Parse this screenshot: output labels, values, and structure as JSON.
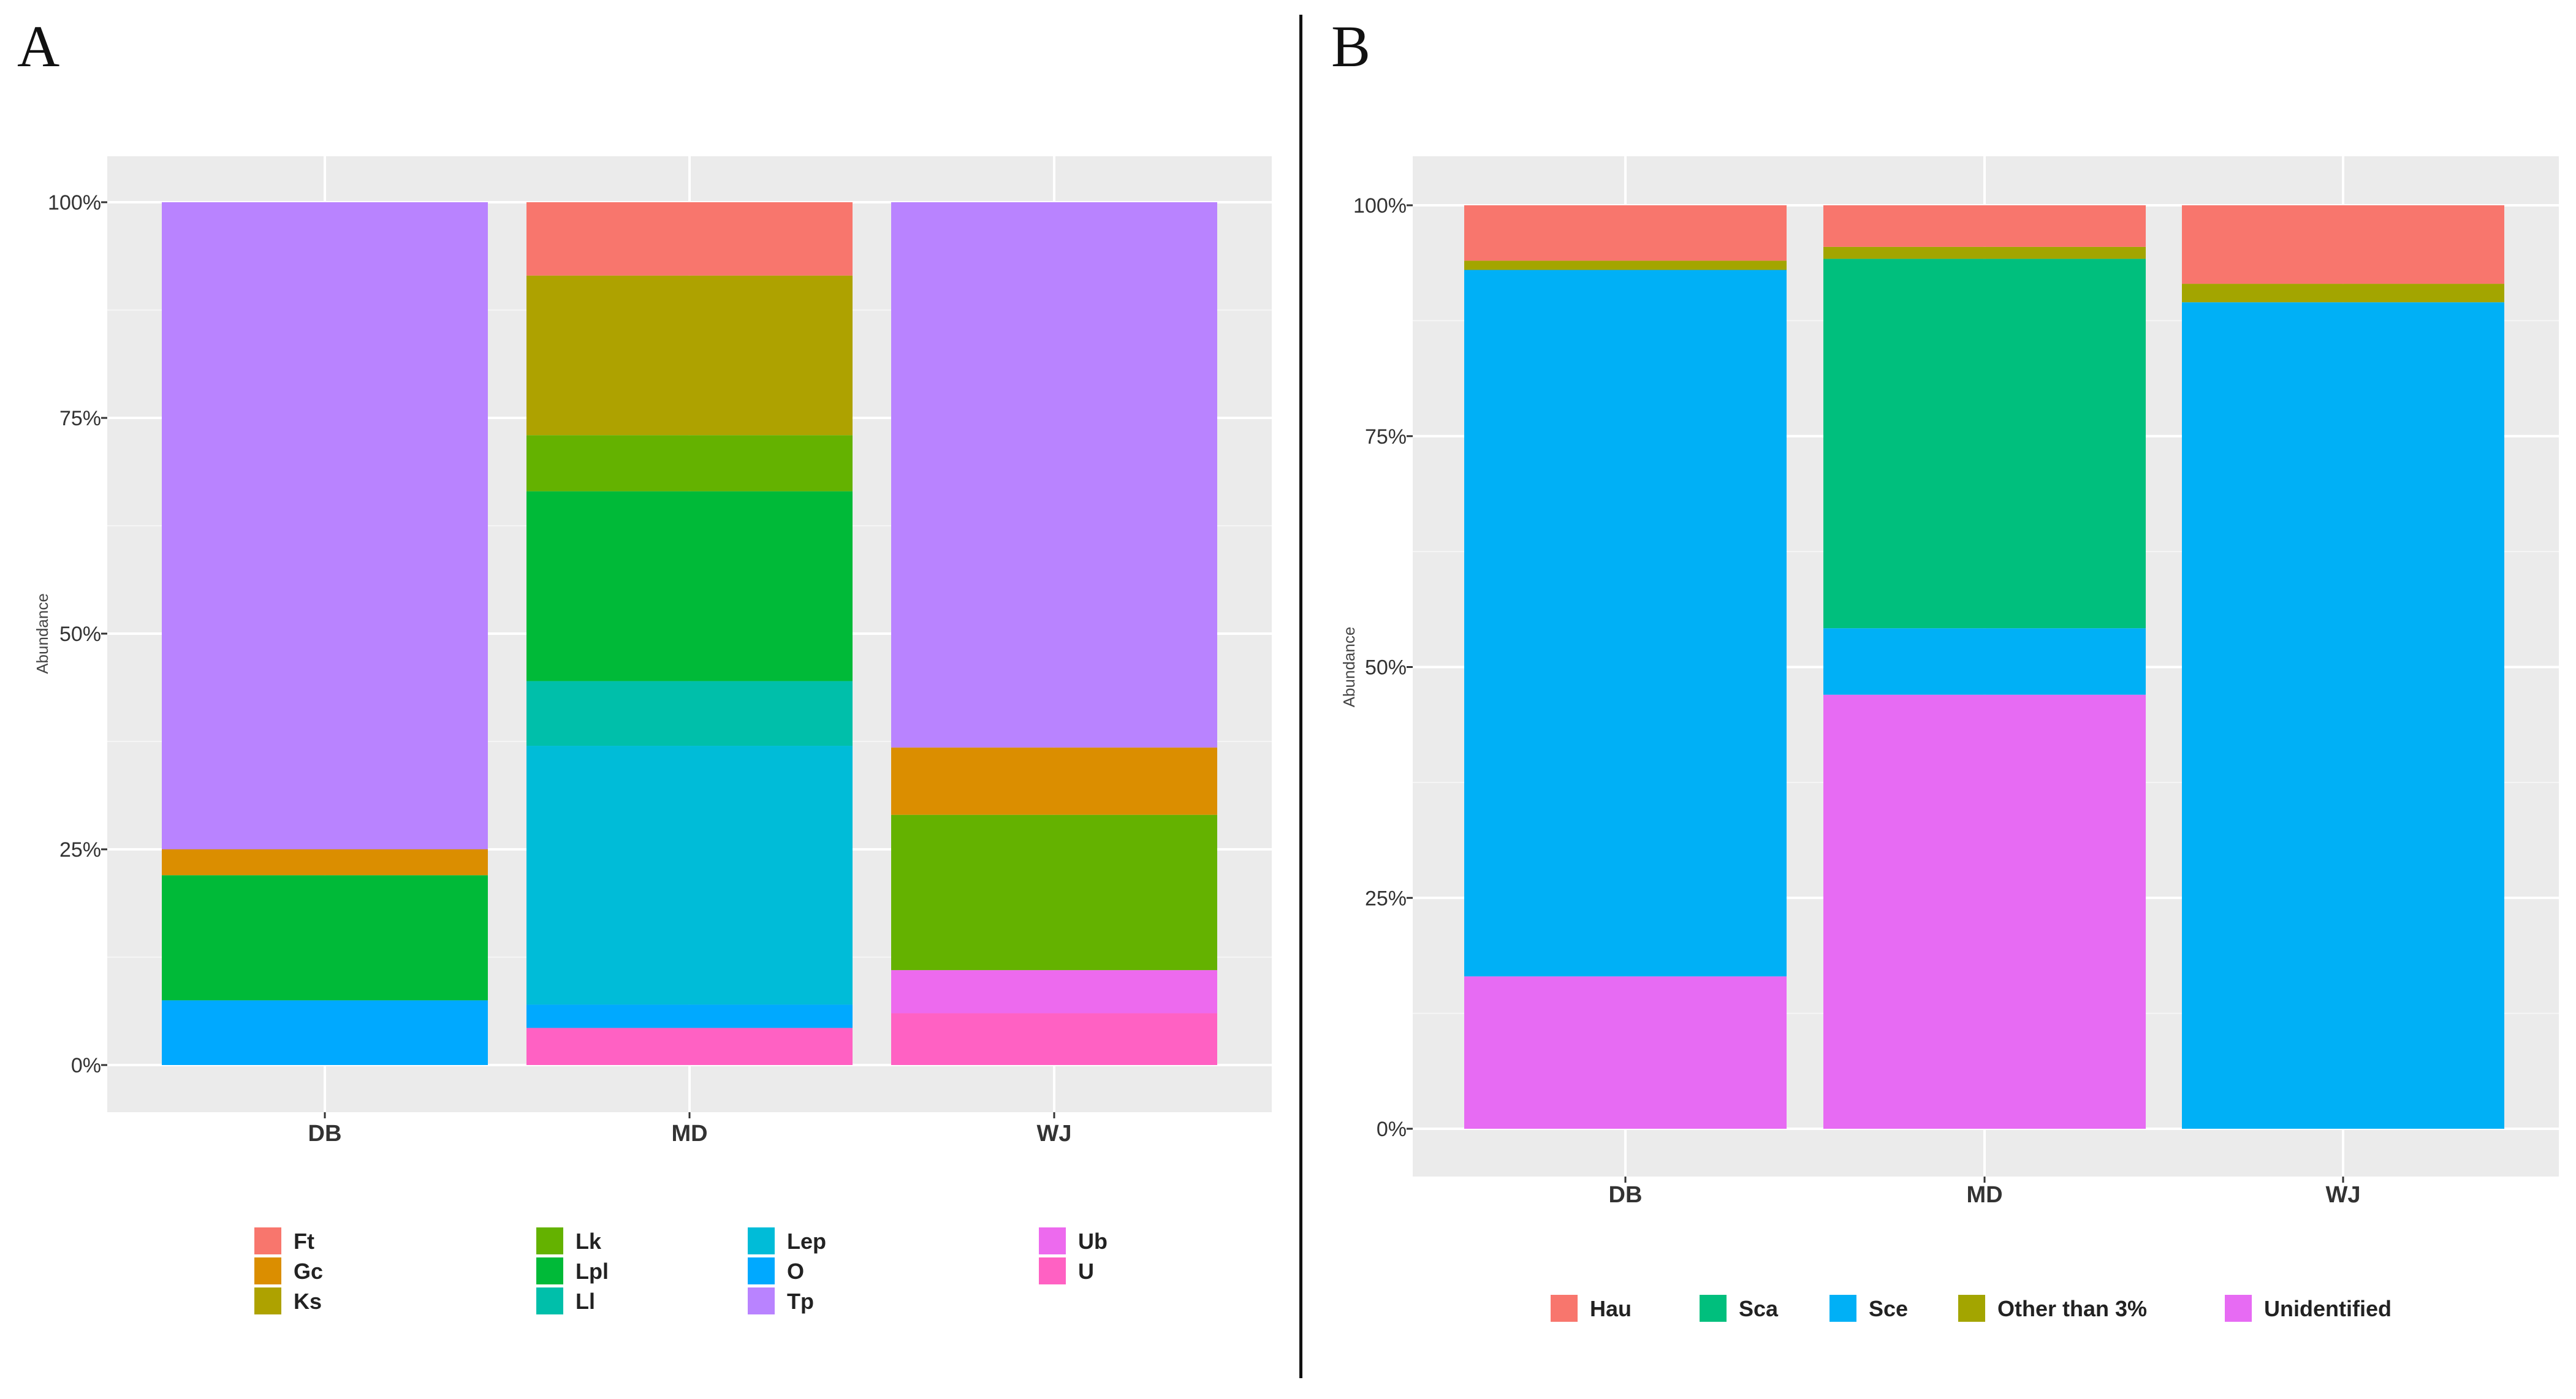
{
  "panel_labels": {
    "a": "A",
    "b": "B"
  },
  "chart_data": [
    {
      "id": "A",
      "type": "bar",
      "stacked": true,
      "ylabel": "Abundance",
      "xlabel": "",
      "ylim": [
        0,
        100
      ],
      "yticks": [
        0,
        25,
        50,
        75,
        100
      ],
      "ytick_labels": [
        "0%",
        "25%",
        "50%",
        "75%",
        "100%"
      ],
      "categories": [
        "DB",
        "MD",
        "WJ"
      ],
      "legend_position": "bottom",
      "legend_columns": [
        [
          "Ft",
          "Gc",
          "Ks"
        ],
        [
          "Lk",
          "Lpl",
          "Ll"
        ],
        [
          "Lep",
          "O",
          "Tp"
        ],
        [
          "Ub",
          "U"
        ]
      ],
      "series": [
        {
          "name": "U",
          "color": "#FF61C3",
          "values": [
            0,
            4.3,
            6.0
          ]
        },
        {
          "name": "Ub",
          "color": "#ED6AEE",
          "values": [
            0,
            0,
            5.0
          ]
        },
        {
          "name": "O",
          "color": "#00A9FF",
          "values": [
            7.5,
            2.7,
            0
          ]
        },
        {
          "name": "Lep",
          "color": "#00BCD8",
          "values": [
            0,
            30.0,
            0
          ]
        },
        {
          "name": "Ll",
          "color": "#00BFAA",
          "values": [
            0,
            7.5,
            0
          ]
        },
        {
          "name": "Lpl",
          "color": "#00BA38",
          "values": [
            14.5,
            22.0,
            0
          ]
        },
        {
          "name": "Lk",
          "color": "#64B200",
          "values": [
            0,
            6.5,
            18.0
          ]
        },
        {
          "name": "Ks",
          "color": "#AEA200",
          "values": [
            0,
            18.5,
            0
          ]
        },
        {
          "name": "Gc",
          "color": "#DB8E00",
          "values": [
            3.0,
            0,
            7.8
          ]
        },
        {
          "name": "Ft",
          "color": "#F8766D",
          "values": [
            0,
            8.5,
            0
          ]
        },
        {
          "name": "Tp",
          "color": "#B983FF",
          "values": [
            75.0,
            0,
            63.2
          ]
        }
      ]
    },
    {
      "id": "B",
      "type": "bar",
      "stacked": true,
      "ylabel": "Abundance",
      "xlabel": "",
      "ylim": [
        0,
        100
      ],
      "yticks": [
        0,
        25,
        50,
        75,
        100
      ],
      "ytick_labels": [
        "0%",
        "25%",
        "50%",
        "75%",
        "100%"
      ],
      "categories": [
        "DB",
        "MD",
        "WJ"
      ],
      "legend_position": "bottom",
      "legend_items": [
        "Hau",
        "Sca",
        "Sce",
        "Other than 3%",
        "Unidentified"
      ],
      "series": [
        {
          "name": "Unidentified",
          "color": "#E76BF3",
          "values": [
            16.5,
            47.0,
            0
          ]
        },
        {
          "name": "Sce",
          "color": "#00B0F6",
          "values": [
            76.5,
            7.2,
            89.5
          ]
        },
        {
          "name": "Sca",
          "color": "#00BF7D",
          "values": [
            0,
            40.0,
            0
          ]
        },
        {
          "name": "Other than 3%",
          "color": "#A3A500",
          "values": [
            1.0,
            1.3,
            2.0
          ]
        },
        {
          "name": "Hau",
          "color": "#F8766D",
          "values": [
            6.0,
            4.5,
            8.5
          ]
        }
      ]
    }
  ]
}
